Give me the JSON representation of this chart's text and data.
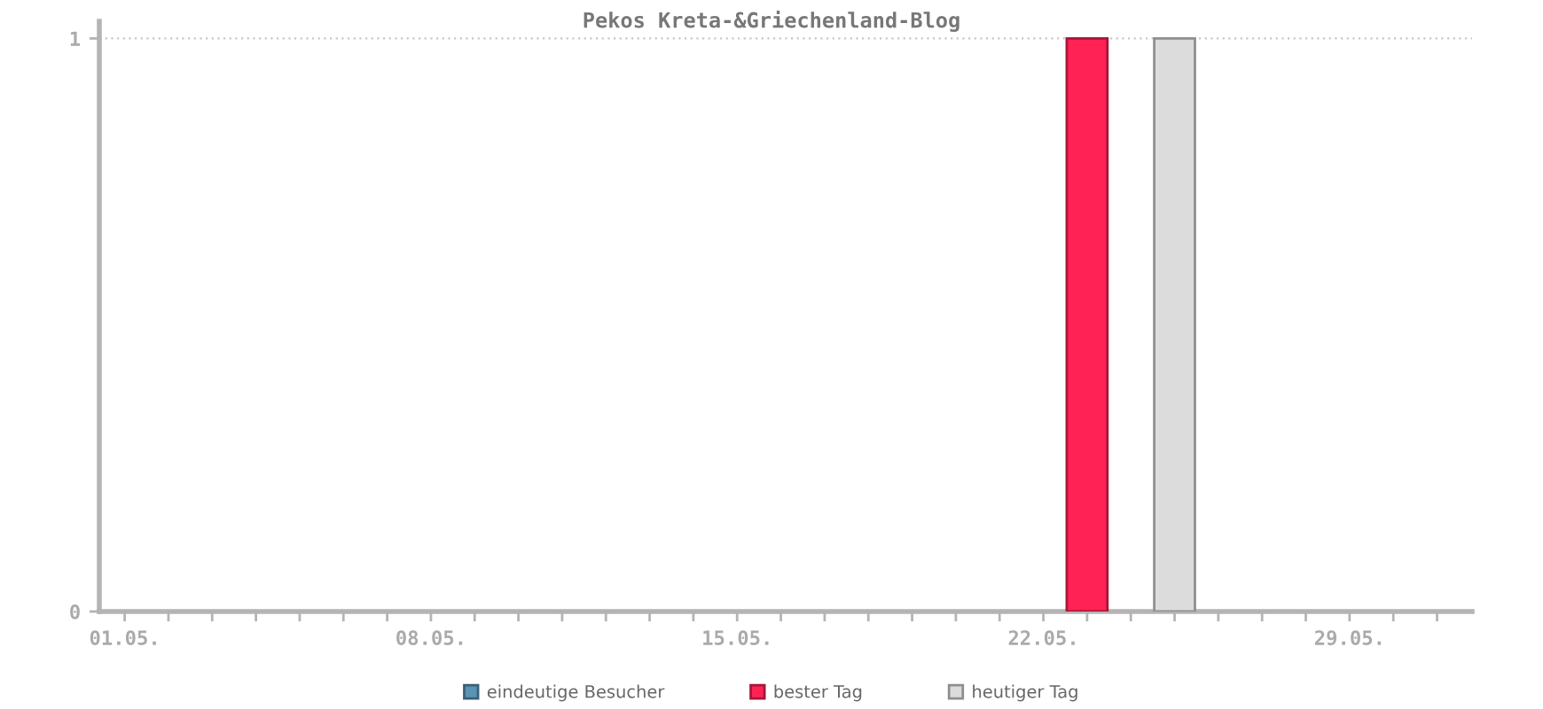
{
  "chart_data": {
    "type": "bar",
    "title": "Pekos Kreta-&Griechenland-Blog",
    "categories": [
      "01.05.",
      null,
      null,
      null,
      null,
      null,
      null,
      "08.05.",
      null,
      null,
      null,
      null,
      null,
      null,
      "15.05.",
      null,
      null,
      null,
      null,
      null,
      null,
      "22.05.",
      null,
      null,
      null,
      null,
      null,
      null,
      "29.05.",
      null,
      null
    ],
    "series": [
      {
        "name": "eindeutige Besucher",
        "color": "#5a94b4",
        "values": [
          0,
          0,
          0,
          0,
          0,
          0,
          0,
          0,
          0,
          0,
          0,
          0,
          0,
          0,
          0,
          0,
          0,
          0,
          0,
          0,
          0,
          0,
          null,
          0,
          null,
          0,
          0,
          0,
          0,
          0,
          0
        ]
      },
      {
        "name": "bester Tag",
        "color": "#ff2255",
        "values": [
          null,
          null,
          null,
          null,
          null,
          null,
          null,
          null,
          null,
          null,
          null,
          null,
          null,
          null,
          null,
          null,
          null,
          null,
          null,
          null,
          null,
          null,
          1,
          null,
          null,
          null,
          null,
          null,
          null,
          null,
          null
        ]
      },
      {
        "name": "heutiger Tag",
        "color": "#dcdcdc",
        "values": [
          null,
          null,
          null,
          null,
          null,
          null,
          null,
          null,
          null,
          null,
          null,
          null,
          null,
          null,
          null,
          null,
          null,
          null,
          null,
          null,
          null,
          null,
          null,
          null,
          1,
          null,
          null,
          null,
          null,
          null,
          null
        ]
      }
    ],
    "ylim": [
      0,
      1.03
    ],
    "yticks": [
      0,
      1
    ],
    "grid": "y",
    "legend": "bottom"
  }
}
